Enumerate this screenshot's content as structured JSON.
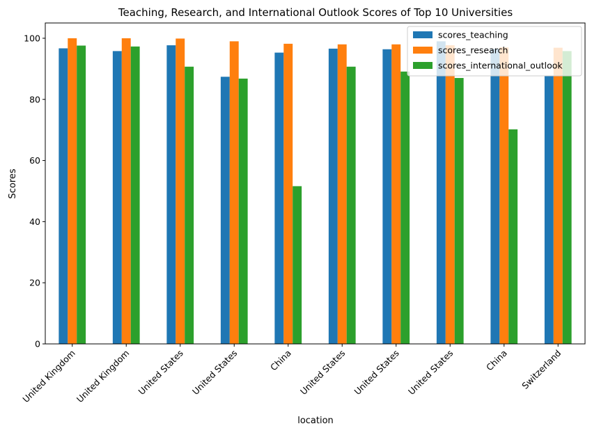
{
  "chart_data": {
    "type": "bar",
    "title": "Teaching, Research, and International Outlook Scores of Top 10 Universities",
    "xlabel": "location",
    "ylabel": "Scores",
    "ylim": [
      0,
      105
    ],
    "yticks": [
      0,
      20,
      40,
      60,
      80,
      100
    ],
    "grid": false,
    "legend_position": "top-right",
    "categories": [
      "United Kingdom",
      "United Kingdom",
      "United States",
      "United States",
      "China",
      "United States",
      "United States",
      "United States",
      "China",
      "Switzerland"
    ],
    "series": [
      {
        "name": "scores_teaching",
        "color": "#1f77b4",
        "values": [
          96.7,
          95.8,
          97.7,
          87.4,
          95.3,
          96.6,
          96.4,
          99.0,
          96.5,
          87.6
        ]
      },
      {
        "name": "scores_research",
        "color": "#ff7f0e",
        "values": [
          100.0,
          100.0,
          99.9,
          99.0,
          98.2,
          98.0,
          98.0,
          97.7,
          97.0,
          96.9
        ]
      },
      {
        "name": "scores_international_outlook",
        "color": "#2ca02c",
        "values": [
          97.6,
          97.3,
          90.7,
          86.8,
          51.6,
          90.7,
          89.1,
          87.0,
          70.2,
          95.8
        ]
      }
    ]
  }
}
